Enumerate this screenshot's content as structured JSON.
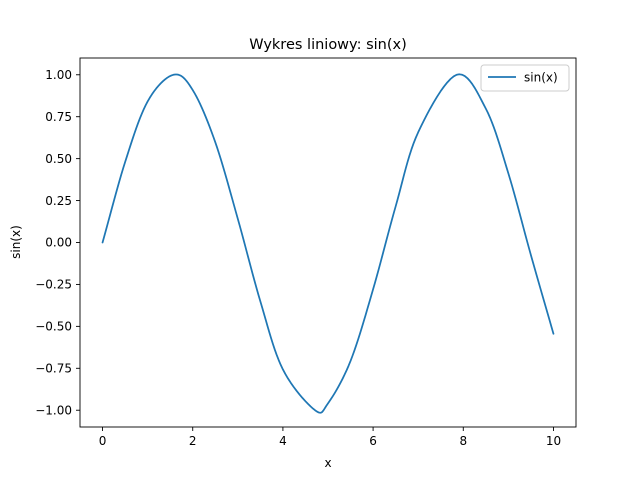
{
  "chart_data": {
    "type": "line",
    "title": "Wykres liniowy: sin(x)",
    "xlabel": "x",
    "ylabel": "sin(x)",
    "xlim": [
      -0.5,
      10.5
    ],
    "ylim": [
      -1.1,
      1.1
    ],
    "x_ticks": [
      0,
      2,
      4,
      6,
      8,
      10
    ],
    "x_tick_labels": [
      "0",
      "2",
      "4",
      "6",
      "8",
      "10"
    ],
    "y_ticks": [
      -1.0,
      -0.75,
      -0.5,
      -0.25,
      0.0,
      0.25,
      0.5,
      0.75,
      1.0
    ],
    "y_tick_labels": [
      "−1.00",
      "−0.75",
      "−0.50",
      "−0.25",
      "0.00",
      "0.25",
      "0.50",
      "0.75",
      "1.00"
    ],
    "grid": false,
    "legend": {
      "placement": "top-right"
    },
    "series": [
      {
        "name": "sin(x)",
        "color": "#1f77b4",
        "x": [
          0.0,
          0.5,
          1.0,
          1.5708,
          2.0,
          2.5,
          3.0,
          3.5,
          4.0,
          4.7124,
          5.0,
          5.5,
          6.0,
          6.5,
          7.0,
          7.854,
          8.5,
          9.0,
          9.5,
          10.0
        ],
        "y": [
          0.0,
          0.479,
          0.841,
          1.0,
          0.909,
          0.598,
          0.141,
          -0.351,
          -0.757,
          -1.0,
          -0.959,
          -0.706,
          -0.279,
          0.215,
          0.657,
          1.0,
          0.798,
          0.412,
          -0.075,
          -0.544
        ]
      }
    ]
  }
}
